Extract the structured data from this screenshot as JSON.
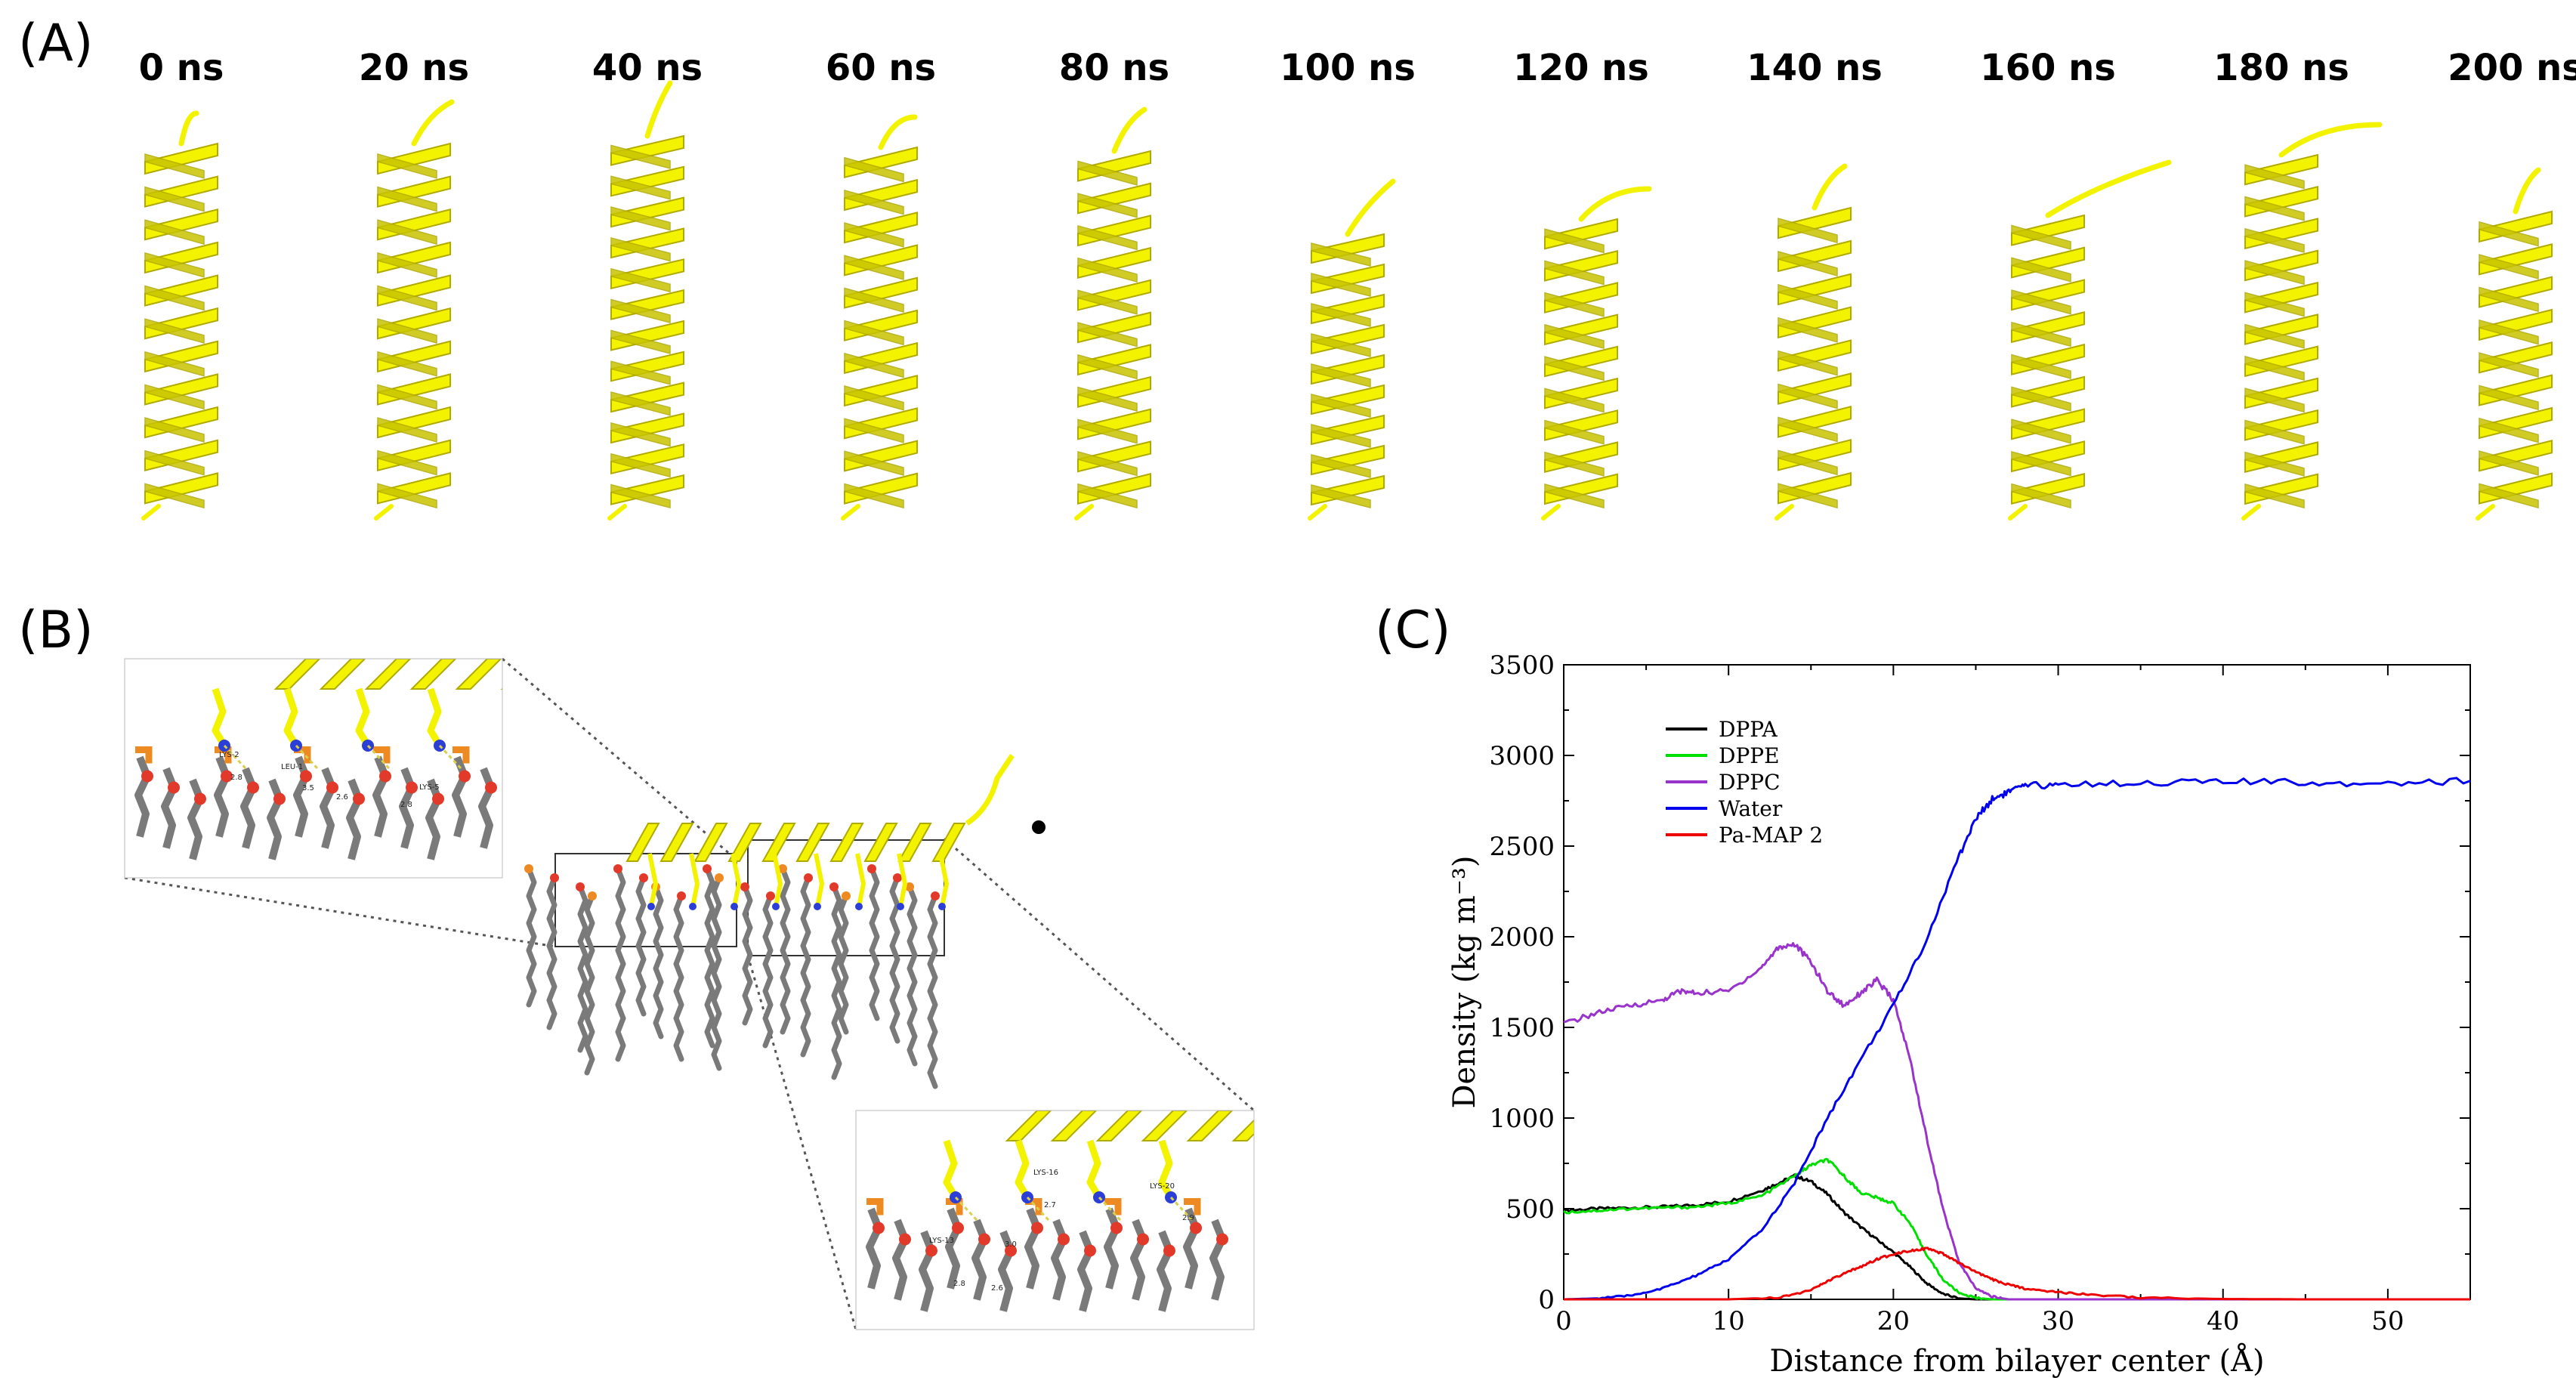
{
  "panels": {
    "a": "(A)",
    "b": "(B)",
    "c": "(C)"
  },
  "snapshots": [
    "0 ns",
    "20 ns",
    "40 ns",
    "60 ns",
    "80 ns",
    "100 ns",
    "120 ns",
    "140 ns",
    "160 ns",
    "180 ns",
    "200 ns"
  ],
  "colors": {
    "helix": "#f3f300",
    "helix_edge": "#b0aa00",
    "lipid": "#7a7a7a",
    "oxygen": "#e23a2a",
    "phosphorus": "#ee8a22",
    "nitrogen": "#2b3fd6",
    "hbond": "#d8cf4a"
  },
  "panel_b": {
    "inset_top_labels": [
      "LYS-2",
      "LEU-1",
      "LYS-5",
      "2.8",
      "3.5",
      "2.6",
      "2.8"
    ],
    "inset_bottom_labels": [
      "LYS-16",
      "LYS-20",
      "LYS-13",
      "2.7",
      "2.9",
      "3.0",
      "2.8",
      "2.6"
    ]
  },
  "chart_data": {
    "type": "line",
    "title": "",
    "xlabel": "Distance from bilayer center (Å)",
    "ylabel": "Density (kg m⁻³)",
    "xlim": [
      0,
      55
    ],
    "ylim": [
      0,
      3500
    ],
    "xticks": [
      0,
      10,
      20,
      30,
      40,
      50
    ],
    "yticks": [
      0,
      500,
      1000,
      1500,
      2000,
      2500,
      3000,
      3500
    ],
    "legend_position": "top-left",
    "series": [
      {
        "name": "DPPA",
        "color": "#000000",
        "x": [
          0,
          2,
          4,
          6,
          8,
          10,
          12,
          13,
          14,
          15,
          16,
          17,
          18,
          19,
          20,
          21,
          22,
          23,
          24,
          25
        ],
        "y": [
          490,
          500,
          505,
          510,
          520,
          540,
          600,
          640,
          680,
          650,
          580,
          480,
          400,
          330,
          260,
          180,
          90,
          30,
          5,
          0
        ]
      },
      {
        "name": "DPPE",
        "color": "#00e000",
        "x": [
          0,
          2,
          4,
          6,
          8,
          10,
          12,
          14,
          15,
          16,
          17,
          18,
          19,
          20,
          21,
          22,
          23,
          24,
          25,
          26
        ],
        "y": [
          480,
          490,
          500,
          505,
          510,
          530,
          570,
          680,
          740,
          770,
          680,
          590,
          560,
          530,
          420,
          250,
          110,
          35,
          8,
          0
        ]
      },
      {
        "name": "DPPC",
        "color": "#9933cc",
        "x": [
          0,
          2,
          4,
          6,
          7,
          8,
          10,
          12,
          13,
          14,
          15,
          16,
          17,
          18,
          19,
          20,
          21,
          22,
          23,
          24,
          25,
          26,
          27
        ],
        "y": [
          1520,
          1580,
          1620,
          1650,
          1700,
          1690,
          1700,
          1830,
          1940,
          1960,
          1860,
          1700,
          1620,
          1690,
          1760,
          1650,
          1330,
          900,
          500,
          200,
          60,
          15,
          0
        ]
      },
      {
        "name": "Water",
        "color": "#0000ee",
        "x": [
          0,
          2,
          4,
          6,
          8,
          10,
          12,
          14,
          16,
          18,
          20,
          22,
          24,
          25,
          26,
          27,
          28,
          30,
          35,
          40,
          45,
          50,
          55
        ],
        "y": [
          0,
          5,
          20,
          60,
          130,
          220,
          380,
          640,
          1000,
          1320,
          1620,
          1980,
          2450,
          2650,
          2760,
          2800,
          2830,
          2840,
          2850,
          2855,
          2850,
          2850,
          2860
        ]
      },
      {
        "name": "Pa-MAP 2",
        "color": "#ee0000",
        "x": [
          0,
          5,
          10,
          13,
          15,
          16,
          17,
          18,
          19,
          20,
          21,
          22,
          23,
          24,
          25,
          26,
          27,
          28,
          30,
          32,
          35,
          40,
          45,
          55
        ],
        "y": [
          0,
          0,
          0,
          10,
          50,
          100,
          140,
          180,
          220,
          250,
          270,
          280,
          250,
          200,
          150,
          110,
          80,
          60,
          40,
          25,
          10,
          2,
          0,
          0
        ]
      }
    ]
  }
}
